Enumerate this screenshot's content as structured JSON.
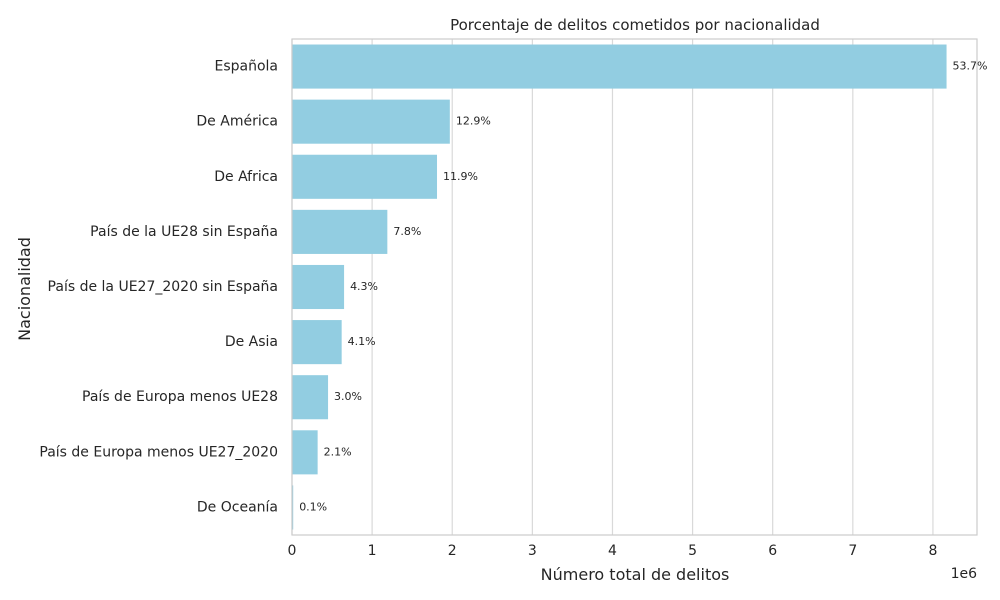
{
  "chart_data": {
    "type": "bar",
    "orientation": "horizontal",
    "title": "Porcentaje de delitos cometidos por nacionalidad",
    "xlabel": "Número total de delitos",
    "ylabel": "Nacionalidad",
    "x_offset_label": "1e6",
    "xlim": [
      0,
      8.55
    ],
    "x_ticks": [
      0,
      1,
      2,
      3,
      4,
      5,
      6,
      7,
      8
    ],
    "x_tick_labels": [
      "0",
      "1",
      "2",
      "3",
      "4",
      "5",
      "6",
      "7",
      "8"
    ],
    "grid": true,
    "categories": [
      "Española",
      "De América",
      "De Africa",
      "País de la UE28 sin España",
      "País de la UE27_2020 sin España",
      "De Asia",
      "País de Europa menos UE28",
      "País de Europa menos UE27_2020",
      "De Oceanía"
    ],
    "values": [
      8.17,
      1.97,
      1.81,
      1.19,
      0.65,
      0.62,
      0.45,
      0.32,
      0.015
    ],
    "value_unit": "millones de delitos",
    "data_labels": [
      "53.7%",
      "12.9%",
      "11.9%",
      "7.8%",
      "4.3%",
      "4.1%",
      "3.0%",
      "2.1%",
      "0.1%"
    ],
    "bar_color": "#92cde1",
    "grid_color": "#d9d9d9",
    "spine_color": "#cccccc",
    "text_color": "#262626"
  }
}
